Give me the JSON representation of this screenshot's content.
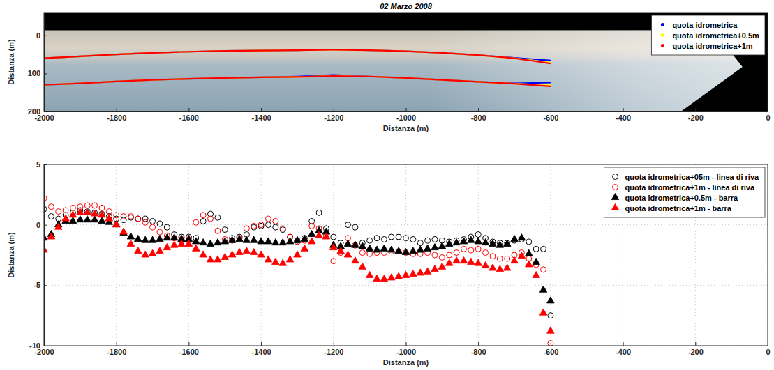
{
  "chart_data": [
    {
      "type": "line",
      "title": "02 Marzo 2008",
      "xlabel": "Distanza (m)",
      "ylabel": "Distanza (m)",
      "xlim": [
        -2000,
        0
      ],
      "ylim": [
        200,
        -60
      ],
      "xticks": [
        -2000,
        -1800,
        -1600,
        -1400,
        -1200,
        -1000,
        -800,
        -600,
        -400,
        -200,
        0
      ],
      "yticks": [
        0,
        100,
        200
      ],
      "grid": false,
      "legend": "upper right",
      "x": [
        -2000,
        -1900,
        -1800,
        -1700,
        -1600,
        -1500,
        -1400,
        -1300,
        -1200,
        -1100,
        -1000,
        -900,
        -800,
        -700,
        -600
      ],
      "series": [
        {
          "name": "quota idrometrica",
          "color": "#0000ff",
          "marker": "point",
          "line_style": "solid",
          "lines": [
            [
              60,
              55,
              50,
              46,
              43,
              41,
              40,
              39,
              37,
              39,
              42,
              46,
              52,
              59,
              66
            ],
            [
              130,
              126,
              121,
              117,
              114,
              112,
              110,
              108,
              104,
              108,
              112,
              117,
              122,
              126,
              124
            ]
          ]
        },
        {
          "name": "quota idrometrica+0.5m",
          "color": "#ffff00",
          "marker": "point",
          "line_style": "solid",
          "lines": [
            [
              60,
              55,
              50,
              46,
              43,
              41,
              40,
              39,
              38,
              39,
              42,
              46,
              52,
              60,
              72
            ],
            [
              130,
              126,
              121,
              117,
              114,
              112,
              110,
              109,
              107,
              108,
              112,
              117,
              122,
              127,
              131
            ]
          ]
        },
        {
          "name": "quota idrometrica+1m",
          "color": "#ff0000",
          "marker": "point",
          "line_style": "solid",
          "lines": [
            [
              60,
              55,
              50,
              46,
              43,
              41,
              40,
              39,
              38,
              39,
              42,
              46,
              52,
              60,
              74
            ],
            [
              130,
              126,
              121,
              117,
              114,
              112,
              110,
              109,
              107,
              108,
              112,
              117,
              122,
              127,
              134
            ]
          ]
        }
      ]
    },
    {
      "type": "scatter",
      "xlabel": "Distanza (m)",
      "ylabel": "Distanza (m)",
      "xlim": [
        -2000,
        0
      ],
      "ylim": [
        -10,
        5
      ],
      "xticks": [
        -2000,
        -1800,
        -1600,
        -1400,
        -1200,
        -1000,
        -800,
        -600,
        -400,
        -200,
        0
      ],
      "yticks": [
        -10,
        -5,
        0,
        5
      ],
      "grid": true,
      "legend": "upper right",
      "x": [
        -2000,
        -1980,
        -1960,
        -1940,
        -1920,
        -1900,
        -1880,
        -1860,
        -1840,
        -1820,
        -1800,
        -1780,
        -1760,
        -1740,
        -1720,
        -1700,
        -1680,
        -1660,
        -1640,
        -1620,
        -1600,
        -1580,
        -1560,
        -1540,
        -1520,
        -1500,
        -1480,
        -1460,
        -1440,
        -1420,
        -1400,
        -1380,
        -1360,
        -1340,
        -1320,
        -1300,
        -1280,
        -1260,
        -1240,
        -1220,
        -1200,
        -1180,
        -1160,
        -1140,
        -1120,
        -1100,
        -1080,
        -1060,
        -1040,
        -1020,
        -1000,
        -980,
        -960,
        -940,
        -920,
        -900,
        -880,
        -860,
        -840,
        -820,
        -800,
        -780,
        -760,
        -740,
        -720,
        -700,
        -680,
        -660,
        -640,
        -620,
        -600
      ],
      "series": [
        {
          "name": "quota idrometrica+05m - linea di riva",
          "color": "#000000",
          "marker": "circle",
          "values": [
            1.3,
            0.7,
            0.5,
            0.8,
            1.0,
            1.2,
            1.1,
            1.0,
            0.9,
            0.7,
            0.5,
            0.4,
            0.6,
            0.5,
            0.5,
            0.3,
            0.1,
            -0.2,
            -0.8,
            -1.0,
            -1.0,
            -1.1,
            0.3,
            0.9,
            0.6,
            -0.4,
            -1.1,
            -1.0,
            -0.8,
            -0.2,
            -0.1,
            0.0,
            -0.2,
            -0.4,
            -1.0,
            -1.3,
            -1.1,
            0.3,
            1.0,
            -0.3,
            -1.0,
            -1.5,
            0.0,
            -0.2,
            -1.5,
            -1.3,
            -1.1,
            -1.2,
            -1.0,
            -1.0,
            -1.1,
            -1.2,
            -1.5,
            -1.3,
            -1.2,
            -1.3,
            -1.4,
            -1.3,
            -1.2,
            -1.0,
            -0.8,
            -1.1,
            -1.4,
            -1.5,
            -1.5,
            -1.3,
            -1.2,
            -1.4,
            -2.0,
            -2.0,
            -7.5
          ]
        },
        {
          "name": "quota idrometrica+1m - linea di riva",
          "color": "#ff0000",
          "marker": "circle",
          "values": [
            2.2,
            1.5,
            1.1,
            1.2,
            1.4,
            1.5,
            1.6,
            1.6,
            1.4,
            1.1,
            0.8,
            0.7,
            0.7,
            0.5,
            0.2,
            -0.2,
            -0.6,
            -0.9,
            -1.1,
            -1.2,
            -1.1,
            0.2,
            0.8,
            0.5,
            -0.5,
            -1.2,
            -1.3,
            -1.1,
            -0.3,
            -0.1,
            0.0,
            0.5,
            0.3,
            -0.3,
            -1.0,
            -1.4,
            -1.3,
            -0.1,
            -0.3,
            -0.9,
            -3.0,
            -2.3,
            -1.1,
            -1.7,
            -2.3,
            -2.4,
            -2.3,
            -2.3,
            -2.2,
            -2.2,
            -2.3,
            -2.4,
            -2.4,
            -2.3,
            -2.5,
            -2.7,
            -2.5,
            -2.3,
            -2.0,
            -2.1,
            -2.0,
            -2.3,
            -2.6,
            -2.8,
            -2.8,
            -2.5,
            -2.3,
            -2.8,
            -3.3,
            -3.7,
            -9.8
          ]
        },
        {
          "name": "quota idrometrica+0.5m - barra",
          "color": "#000000",
          "marker": "triangle",
          "values": [
            -1.1,
            -0.8,
            0.0,
            0.3,
            0.3,
            0.4,
            0.4,
            0.4,
            0.3,
            0.2,
            0.0,
            -0.7,
            -1.0,
            -1.2,
            -1.3,
            -1.3,
            -1.2,
            -1.1,
            -1.1,
            -1.2,
            -1.2,
            -1.4,
            -1.5,
            -1.6,
            -1.5,
            -1.4,
            -1.3,
            -1.2,
            -1.3,
            -1.3,
            -1.4,
            -1.4,
            -1.5,
            -1.5,
            -1.4,
            -1.3,
            -1.2,
            -0.8,
            -0.5,
            -0.6,
            -1.7,
            -1.8,
            -1.6,
            -1.7,
            -1.8,
            -2.0,
            -2.1,
            -2.0,
            -2.1,
            -2.2,
            -2.3,
            -2.2,
            -2.1,
            -2.0,
            -1.9,
            -1.8,
            -1.6,
            -1.5,
            -1.4,
            -1.3,
            -1.4,
            -1.5,
            -1.6,
            -1.7,
            -1.6,
            -1.2,
            -1.1,
            -2.4,
            -3.1,
            -5.4,
            -6.3
          ]
        },
        {
          "name": "quota idrometrica+1m - barra",
          "color": "#ff0000",
          "marker": "triangle",
          "values": [
            -2.1,
            -1.0,
            -0.2,
            0.5,
            0.8,
            1.0,
            1.0,
            0.9,
            0.8,
            0.5,
            0.0,
            -0.6,
            -1.6,
            -2.2,
            -2.5,
            -2.4,
            -2.2,
            -1.9,
            -1.7,
            -1.6,
            -1.6,
            -2.0,
            -2.5,
            -2.9,
            -2.9,
            -2.7,
            -2.5,
            -2.3,
            -2.2,
            -2.3,
            -2.5,
            -2.9,
            -3.1,
            -3.2,
            -2.9,
            -2.5,
            -2.0,
            -1.4,
            -0.9,
            -1.0,
            -1.9,
            -2.2,
            -2.5,
            -3.0,
            -3.5,
            -4.2,
            -4.5,
            -4.5,
            -4.4,
            -4.3,
            -4.2,
            -4.1,
            -4.0,
            -3.9,
            -3.7,
            -3.5,
            -3.2,
            -3.0,
            -3.0,
            -3.1,
            -3.2,
            -3.4,
            -3.6,
            -3.7,
            -3.6,
            -3.0,
            -2.6,
            -3.3,
            -4.2,
            -7.3,
            -8.8
          ]
        }
      ]
    }
  ]
}
